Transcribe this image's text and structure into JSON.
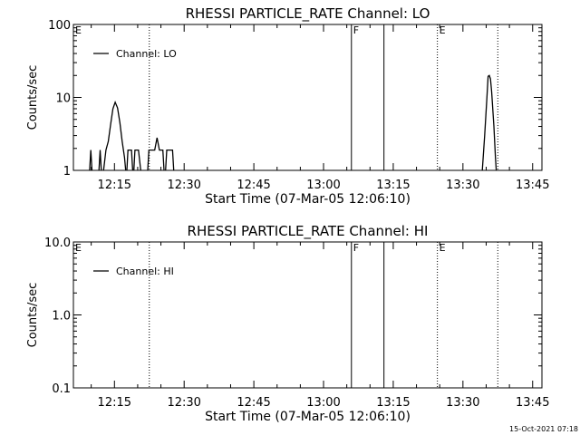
{
  "footer": {
    "timestamp": "15-Oct-2021 07:18"
  },
  "chart_data": [
    {
      "type": "line",
      "title": "RHESSI PARTICLE_RATE Channel: LO",
      "xlabel": "Start Time (07-Mar-05 12:06:10)",
      "ylabel": "Counts/sec",
      "yscale": "log",
      "ylim": [
        1,
        100
      ],
      "xlim": [
        "12:06:10",
        "13:47:00"
      ],
      "xticks": [
        "12:15",
        "12:30",
        "12:45",
        "13:00",
        "13:15",
        "13:30",
        "13:45"
      ],
      "yticks": [
        "1",
        "10",
        "100"
      ],
      "legend": {
        "position": "top-left",
        "entries": [
          "Channel: LO"
        ]
      },
      "grid": false,
      "markers": [
        {
          "label": "E",
          "time": "12:06:10",
          "style": "none"
        },
        {
          "time": "12:22:30",
          "style": "dotted"
        },
        {
          "label": "F",
          "time": "13:06:00",
          "style": "solid"
        },
        {
          "time": "13:13:00",
          "style": "solid"
        },
        {
          "label": "E",
          "time": "13:24:30",
          "style": "dotted"
        },
        {
          "time": "13:37:30",
          "style": "dotted"
        }
      ],
      "series": [
        {
          "name": "Channel: LO",
          "segments": [
            [
              [
                "12:09:40",
                1
              ],
              [
                "12:09:55",
                1.9
              ],
              [
                "12:10:10",
                1
              ]
            ],
            [
              [
                "12:11:40",
                1
              ],
              [
                "12:11:55",
                1.9
              ],
              [
                "12:12:10",
                1
              ]
            ],
            [
              [
                "12:12:40",
                1
              ],
              [
                "12:13:10",
                1.9
              ],
              [
                "12:13:40",
                2.5
              ],
              [
                "12:14:10",
                4.2
              ],
              [
                "12:14:40",
                7
              ],
              [
                "12:15:10",
                8.6
              ],
              [
                "12:15:40",
                7.2
              ],
              [
                "12:16:10",
                4.5
              ],
              [
                "12:16:40",
                2.5
              ],
              [
                "12:17:10",
                1.5
              ],
              [
                "12:17:25",
                1
              ]
            ],
            [
              [
                "12:17:40",
                1
              ],
              [
                "12:17:55",
                1.9
              ],
              [
                "12:18:40",
                1.9
              ],
              [
                "12:18:55",
                1
              ]
            ],
            [
              [
                "12:19:10",
                1
              ],
              [
                "12:19:25",
                1.9
              ],
              [
                "12:20:10",
                1.9
              ],
              [
                "12:20:40",
                1
              ]
            ],
            [
              [
                "12:22:10",
                1
              ],
              [
                "12:22:25",
                1.9
              ],
              [
                "12:23:40",
                1.9
              ],
              [
                "12:24:10",
                2.8
              ],
              [
                "12:24:40",
                1.9
              ],
              [
                "12:25:25",
                1.9
              ],
              [
                "12:25:40",
                1
              ]
            ],
            [
              [
                "12:26:00",
                1
              ],
              [
                "12:26:15",
                1.9
              ],
              [
                "12:27:30",
                1.9
              ],
              [
                "12:27:45",
                1
              ]
            ],
            [
              [
                "13:34:10",
                1
              ],
              [
                "13:34:40",
                3
              ],
              [
                "13:35:10",
                10
              ],
              [
                "13:35:25",
                19.5
              ],
              [
                "13:35:40",
                20
              ],
              [
                "13:35:55",
                18
              ],
              [
                "13:36:10",
                12
              ],
              [
                "13:36:40",
                4
              ],
              [
                "13:37:00",
                1.5
              ],
              [
                "13:37:10",
                1
              ]
            ]
          ]
        }
      ]
    },
    {
      "type": "line",
      "title": "RHESSI PARTICLE_RATE Channel: HI",
      "xlabel": "Start Time (07-Mar-05 12:06:10)",
      "ylabel": "Counts/sec",
      "yscale": "log",
      "ylim": [
        0.1,
        10
      ],
      "xlim": [
        "12:06:10",
        "13:47:00"
      ],
      "xticks": [
        "12:15",
        "12:30",
        "12:45",
        "13:00",
        "13:15",
        "13:30",
        "13:45"
      ],
      "yticks": [
        "0.1",
        "1.0",
        "10.0"
      ],
      "legend": {
        "position": "top-left",
        "entries": [
          "Channel: HI"
        ]
      },
      "grid": false,
      "markers": [
        {
          "label": "E",
          "time": "12:06:10",
          "style": "none"
        },
        {
          "time": "12:22:30",
          "style": "dotted"
        },
        {
          "label": "F",
          "time": "13:06:00",
          "style": "solid"
        },
        {
          "time": "13:13:00",
          "style": "solid"
        },
        {
          "label": "E",
          "time": "13:24:30",
          "style": "dotted"
        },
        {
          "time": "13:37:30",
          "style": "dotted"
        }
      ],
      "series": [
        {
          "name": "Channel: HI",
          "segments": []
        }
      ]
    }
  ]
}
